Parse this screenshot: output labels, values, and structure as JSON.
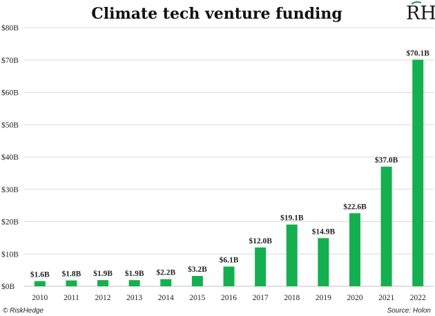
{
  "chart_data": {
    "type": "bar",
    "title": "Climate tech venture funding",
    "categories": [
      "2010",
      "2011",
      "2012",
      "2013",
      "2014",
      "2015",
      "2016",
      "2017",
      "2018",
      "2019",
      "2020",
      "2021",
      "2022"
    ],
    "values": [
      1.6,
      1.8,
      1.9,
      1.9,
      2.2,
      3.2,
      6.1,
      12.0,
      19.1,
      14.9,
      22.6,
      37.0,
      70.1
    ],
    "data_labels": [
      "$1.6B",
      "$1.8B",
      "$1.9B",
      "$1.9B",
      "$2.2B",
      "$3.2B",
      "$6.1B",
      "$12.0B",
      "$19.1B",
      "$14.9B",
      "$22.6B",
      "$37.0B",
      "$70.1B"
    ],
    "ylim": [
      0,
      80
    ],
    "yticks": [
      0,
      10,
      20,
      30,
      40,
      50,
      60,
      70,
      80
    ],
    "ytick_labels": [
      "$0B",
      "$10B",
      "$20B",
      "$30B",
      "$40B",
      "$50B",
      "$60B",
      "$70B",
      "$80B"
    ],
    "xlabel": "",
    "ylabel": "",
    "grid": true,
    "legend": "none",
    "colors": {
      "bar": "#14b04f",
      "grid": "#d9d9d9",
      "axis": "#bfbfbf"
    }
  },
  "footer": {
    "copyright": "© RiskHedge",
    "source": "Source: Holon"
  },
  "logo": {
    "text": "RH",
    "colors": {
      "letters": "#1a1a1a",
      "accent": "#2e8b3a"
    }
  }
}
